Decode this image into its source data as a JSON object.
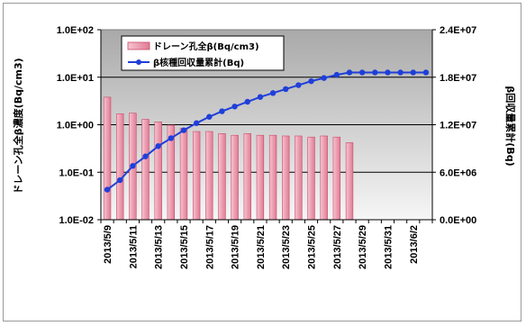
{
  "chart_data": {
    "type": "bar",
    "title": "",
    "categories": [
      "2013/5/9",
      "2013/5/10",
      "2013/5/11",
      "2013/5/12",
      "2013/5/13",
      "2013/5/14",
      "2013/5/15",
      "2013/5/16",
      "2013/5/17",
      "2013/5/18",
      "2013/5/19",
      "2013/5/20",
      "2013/5/21",
      "2013/5/22",
      "2013/5/23",
      "2013/5/24",
      "2013/5/25",
      "2013/5/26",
      "2013/5/27",
      "2013/5/28",
      "2013/5/29",
      "2013/5/30",
      "2013/5/31",
      "2013/6/1",
      "2013/6/2",
      "2013/6/3"
    ],
    "category_tick_labels": [
      "2013/5/9",
      "2013/5/11",
      "2013/5/13",
      "2013/5/15",
      "2013/5/17",
      "2013/5/19",
      "2013/5/21",
      "2013/5/23",
      "2013/5/25",
      "2013/5/27",
      "2013/5/29",
      "2013/5/31",
      "2013/6/2"
    ],
    "series": [
      {
        "name": "ドレーン孔全β(Bq/cm3)",
        "type": "bar",
        "axis": "left",
        "color": "#f4a0b4",
        "values": [
          3.8,
          1.7,
          1.75,
          1.3,
          1.15,
          0.98,
          0.85,
          0.72,
          0.72,
          0.65,
          0.6,
          0.65,
          0.6,
          0.6,
          0.58,
          0.58,
          0.55,
          0.58,
          0.55,
          0.42,
          null,
          null,
          null,
          null,
          null,
          null
        ]
      },
      {
        "name": "β核種回収量累計(Bq)",
        "type": "line",
        "axis": "right",
        "color": "#1f3fd9",
        "values": [
          3800000,
          5000000,
          6800000,
          8000000,
          9300000,
          10300000,
          11300000,
          12200000,
          13000000,
          13700000,
          14300000,
          14900000,
          15500000,
          16000000,
          16500000,
          17000000,
          17500000,
          17900000,
          18300000,
          18600000,
          18600000,
          18600000,
          18600000,
          18600000,
          18600000,
          18600000
        ]
      }
    ],
    "y_left": {
      "label": "ドレーン孔全β濃度(Bq/cm3)",
      "scale": "log",
      "range": [
        0.01,
        100
      ],
      "ticks": [
        "1.0E-02",
        "1.0E-01",
        "1.0E+00",
        "1.0E+01",
        "1.0E+02"
      ]
    },
    "y_right": {
      "label": "β回収量累計(Bq)",
      "scale": "linear",
      "range": [
        0,
        24000000
      ],
      "ticks": [
        "0.0E+00",
        "6.0E+06",
        "1.2E+07",
        "1.8E+07",
        "2.4E+07"
      ]
    },
    "grid": true,
    "legend": "top-left"
  }
}
